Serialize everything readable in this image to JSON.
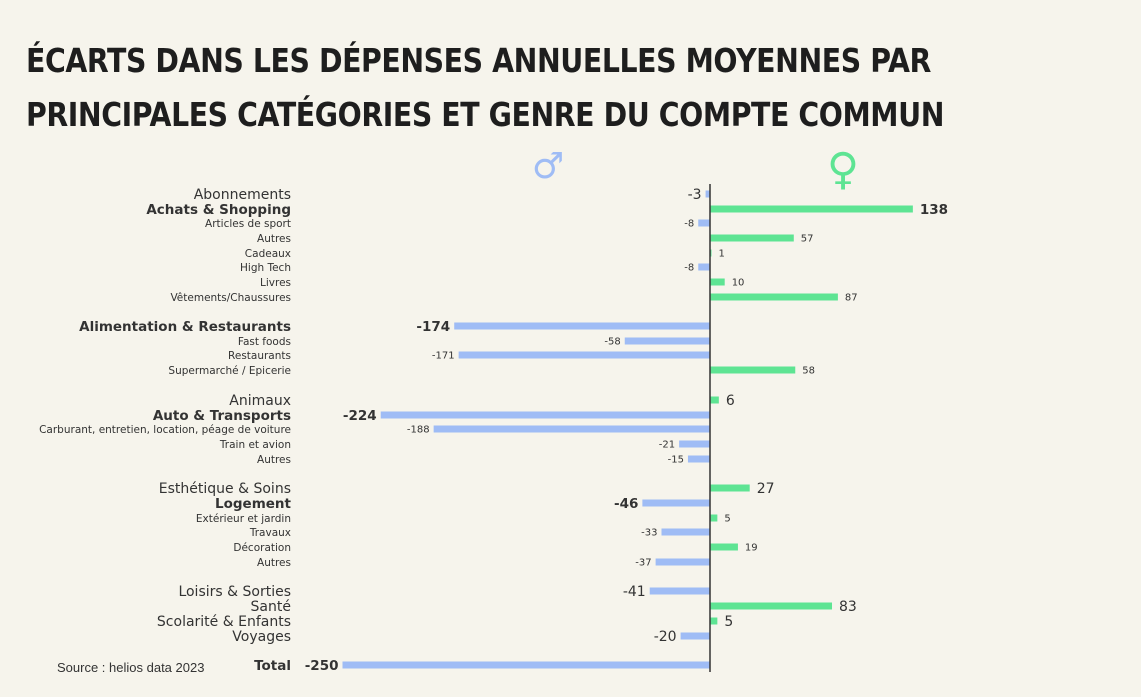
{
  "title_lines": [
    "ÉCARTS DANS LES DÉPENSES ANNUELLES MOYENNES PAR",
    "PRINCIPALES CATÉGORIES ET GENRE DU COMPTE COMMUN"
  ],
  "source": "Source : helios data 2023",
  "colors": {
    "male": "#9fbcf5",
    "female": "#5ee493",
    "axis": "#333333"
  },
  "chart_data": {
    "type": "bar",
    "orientation": "horizontal",
    "title": "ÉCARTS DANS LES DÉPENSES ANNUELLES MOYENNES PAR PRINCIPALES CATÉGORIES ET GENRE DU COMPTE COMMUN",
    "legend": {
      "male_symbol": "♂",
      "female_symbol": "♀"
    },
    "categories": [
      "Abonnements",
      "Achats & Shopping",
      "Articles de sport",
      "Autres",
      "Cadeaux",
      "High Tech",
      "Livres",
      "Vêtements/Chaussures",
      "Alimentation & Restaurants",
      "Fast foods",
      "Restaurants",
      "Supermarché / Epicerie",
      "Animaux",
      "Auto & Transports",
      "Carburant, entretien, location, péage de voiture",
      "Train et avion",
      "Autres",
      "Esthétique & Soins",
      "Logement",
      "Extérieur et jardin",
      "Travaux",
      "Décoration",
      "Autres",
      "Loisirs & Sorties",
      "Santé",
      "Scolarité & Enfants",
      "Voyages",
      "Total"
    ],
    "values": [
      -3,
      138,
      -8,
      57,
      1,
      -8,
      10,
      87,
      -174,
      -58,
      -171,
      58,
      6,
      -224,
      -188,
      -21,
      -15,
      27,
      -46,
      5,
      -33,
      19,
      -37,
      -41,
      83,
      5,
      -20,
      -250
    ],
    "value_labels": [
      "-3",
      "138",
      "-8",
      "57",
      "1",
      "-8",
      "10",
      "87",
      "-174",
      "-58",
      "-171",
      "58",
      "6",
      "-224",
      "-188",
      "-21",
      "-15",
      "27",
      "-46",
      "5",
      "-33",
      "19",
      "-37",
      "-41",
      "83",
      "5",
      "-20",
      "-250"
    ],
    "levels": [
      "main",
      "bold",
      "sub",
      "sub",
      "sub",
      "sub",
      "sub",
      "sub",
      "bold",
      "sub",
      "sub",
      "sub",
      "main",
      "bold",
      "sub",
      "sub",
      "sub",
      "main",
      "bold",
      "sub",
      "sub",
      "sub",
      "sub",
      "main",
      "main",
      "main",
      "main",
      "bold"
    ],
    "xlim": [
      -250,
      138
    ]
  }
}
